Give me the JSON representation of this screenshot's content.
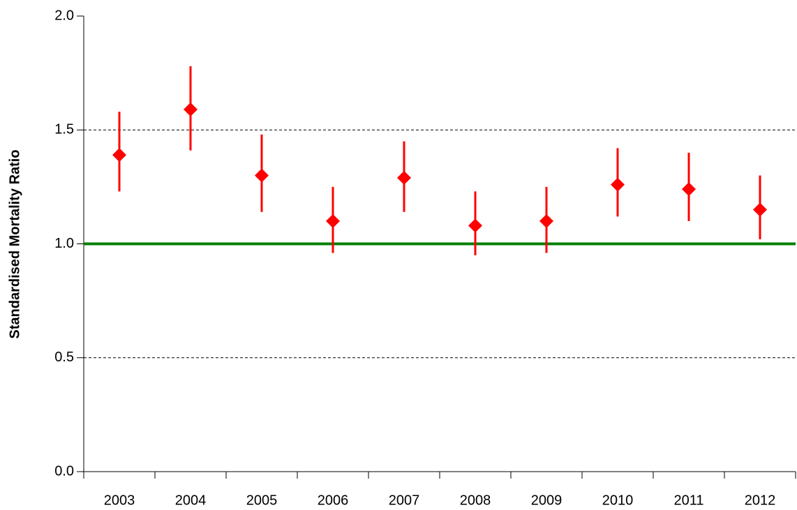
{
  "chart_data": {
    "type": "errorbar",
    "y_label": "Standardised Mortality Ratio",
    "categories": [
      "2003",
      "2004",
      "2005",
      "2006",
      "2007",
      "2008",
      "2009",
      "2010",
      "2011",
      "2012"
    ],
    "series": [
      {
        "color": "#ff0000",
        "values": [
          1.39,
          1.59,
          1.3,
          1.1,
          1.29,
          1.08,
          1.1,
          1.26,
          1.24,
          1.15
        ],
        "lower": [
          1.23,
          1.41,
          1.14,
          0.96,
          1.14,
          0.95,
          0.96,
          1.12,
          1.1,
          1.02
        ],
        "upper": [
          1.58,
          1.78,
          1.48,
          1.25,
          1.45,
          1.23,
          1.25,
          1.42,
          1.4,
          1.3
        ]
      }
    ],
    "reference_line": {
      "value": 1,
      "color": "#008000"
    },
    "ylim": [
      0,
      2
    ],
    "yticks": [
      {
        "value": 0,
        "label": "0.0"
      },
      0.5,
      {
        "value": 1,
        "label": "1.0"
      },
      1.5,
      {
        "value": 2,
        "label": "2.0"
      }
    ],
    "grid": true
  }
}
